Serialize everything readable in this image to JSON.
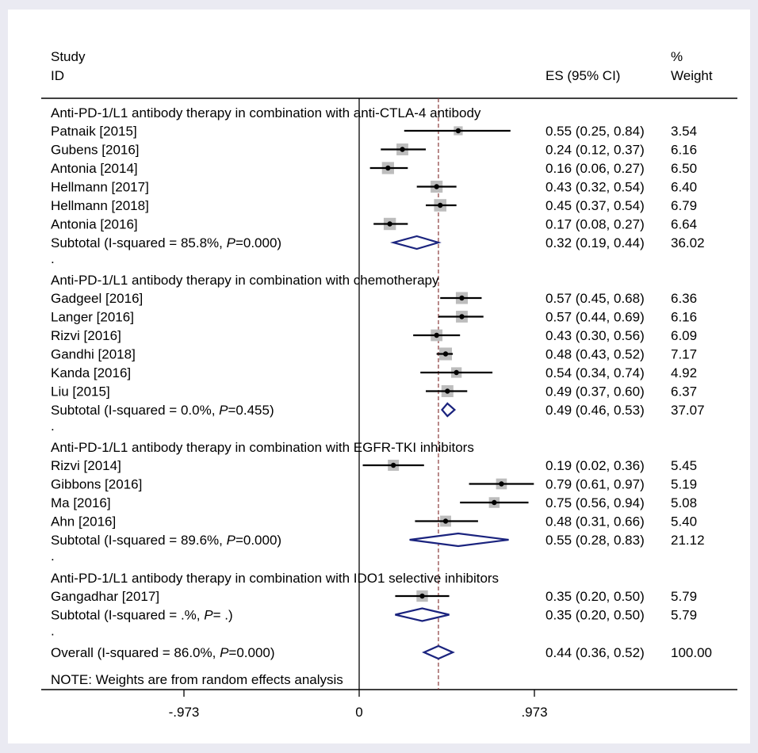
{
  "chart_data": {
    "type": "forest",
    "header": {
      "study_line1": "Study",
      "study_line2": "ID",
      "es": "ES (95% CI)",
      "weight_line1": "%",
      "weight_line2": "Weight"
    },
    "reference_lines": {
      "null": 0,
      "overall_es": 0.44
    },
    "x_ticks": [
      {
        "value": -0.973,
        "label": "-.973"
      },
      {
        "value": 0,
        "label": "0"
      },
      {
        "value": 0.973,
        "label": ".973"
      }
    ],
    "groups": [
      {
        "title": "Anti-PD-1/L1 antibody therapy in combination with  anti-CTLA-4 antibody",
        "studies": [
          {
            "name": "Patnaik [2015]",
            "es": 0.55,
            "lo": 0.25,
            "hi": 0.84,
            "ci_text": "0.55 (0.25, 0.84)",
            "weight": "3.54"
          },
          {
            "name": "Gubens [2016]",
            "es": 0.24,
            "lo": 0.12,
            "hi": 0.37,
            "ci_text": "0.24 (0.12, 0.37)",
            "weight": "6.16"
          },
          {
            "name": "Antonia [2014]",
            "es": 0.16,
            "lo": 0.06,
            "hi": 0.27,
            "ci_text": "0.16 (0.06, 0.27)",
            "weight": "6.50"
          },
          {
            "name": "Hellmann [2017]",
            "es": 0.43,
            "lo": 0.32,
            "hi": 0.54,
            "ci_text": "0.43 (0.32, 0.54)",
            "weight": "6.40"
          },
          {
            "name": "Hellmann [2018]",
            "es": 0.45,
            "lo": 0.37,
            "hi": 0.54,
            "ci_text": "0.45 (0.37, 0.54)",
            "weight": "6.79"
          },
          {
            "name": "Antonia [2016]",
            "es": 0.17,
            "lo": 0.08,
            "hi": 0.27,
            "ci_text": "0.17 (0.08, 0.27)",
            "weight": "6.64"
          }
        ],
        "subtotal": {
          "label_start": "Subtotal  (I-squared = 85.8%, ",
          "p_text": "=0.000)",
          "es": 0.32,
          "lo": 0.19,
          "hi": 0.44,
          "ci_text": "0.32 (0.19, 0.44)",
          "weight": "36.02"
        }
      },
      {
        "title": "Anti-PD-1/L1 antibody therapy in combination with  chemotherapy",
        "studies": [
          {
            "name": "Gadgeel [2016]",
            "es": 0.57,
            "lo": 0.45,
            "hi": 0.68,
            "ci_text": "0.57 (0.45, 0.68)",
            "weight": "6.36"
          },
          {
            "name": "Langer  [2016]",
            "es": 0.57,
            "lo": 0.44,
            "hi": 0.69,
            "ci_text": "0.57 (0.44, 0.69)",
            "weight": "6.16"
          },
          {
            "name": "Rizvi [2016]",
            "es": 0.43,
            "lo": 0.3,
            "hi": 0.56,
            "ci_text": "0.43 (0.30, 0.56)",
            "weight": "6.09"
          },
          {
            "name": "Gandhi [2018]",
            "es": 0.48,
            "lo": 0.43,
            "hi": 0.52,
            "ci_text": "0.48 (0.43, 0.52)",
            "weight": "7.17"
          },
          {
            "name": "Kanda [2016]",
            "es": 0.54,
            "lo": 0.34,
            "hi": 0.74,
            "ci_text": "0.54 (0.34, 0.74)",
            "weight": "4.92"
          },
          {
            "name": "Liu  [2015]",
            "es": 0.49,
            "lo": 0.37,
            "hi": 0.6,
            "ci_text": "0.49 (0.37, 0.60)",
            "weight": "6.37"
          }
        ],
        "subtotal": {
          "label_start": "Subtotal  (I-squared = 0.0%, ",
          "p_text": "=0.455)",
          "es": 0.49,
          "lo": 0.46,
          "hi": 0.53,
          "ci_text": "0.49 (0.46, 0.53)",
          "weight": "37.07"
        }
      },
      {
        "title": "Anti-PD-1/L1  antibody therapy in combination with  EGFR-TKI inhibitors",
        "studies": [
          {
            "name": "Rizvi [2014]",
            "es": 0.19,
            "lo": 0.02,
            "hi": 0.36,
            "ci_text": "0.19 (0.02, 0.36)",
            "weight": "5.45"
          },
          {
            "name": "Gibbons  [2016]",
            "es": 0.79,
            "lo": 0.61,
            "hi": 0.97,
            "ci_text": "0.79 (0.61, 0.97)",
            "weight": "5.19"
          },
          {
            "name": "Ma  [2016]",
            "es": 0.75,
            "lo": 0.56,
            "hi": 0.94,
            "ci_text": "0.75 (0.56, 0.94)",
            "weight": "5.08"
          },
          {
            "name": "Ahn [2016]",
            "es": 0.48,
            "lo": 0.31,
            "hi": 0.66,
            "ci_text": "0.48 (0.31, 0.66)",
            "weight": "5.40"
          }
        ],
        "subtotal": {
          "label_start": "Subtotal  (I-squared = 89.6%, ",
          "p_text": "=0.000)",
          "es": 0.55,
          "lo": 0.28,
          "hi": 0.83,
          "ci_text": "0.55 (0.28, 0.83)",
          "weight": "21.12"
        }
      },
      {
        "title": "Anti-PD-1/L1  antibody therapy in combination with IDO1 selective inhibitors",
        "studies": [
          {
            "name": "Gangadhar  [2017]",
            "es": 0.35,
            "lo": 0.2,
            "hi": 0.5,
            "ci_text": "0.35 (0.20, 0.50)",
            "weight": "5.79"
          }
        ],
        "subtotal": {
          "label_start": "Subtotal  (I-squared = .%, ",
          "p_text": "= .)",
          "es": 0.35,
          "lo": 0.2,
          "hi": 0.5,
          "ci_text": "0.35 (0.20, 0.50)",
          "weight": "5.79"
        }
      }
    ],
    "overall": {
      "label_start": "Overall  (I-squared = 86.0%, ",
      "p_text": "=0.000)",
      "es": 0.44,
      "lo": 0.36,
      "hi": 0.52,
      "ci_text": "0.44 (0.36, 0.52)",
      "weight": "100.00"
    },
    "p_symbol": "P",
    "spacer_mark": ".",
    "note": "NOTE: Weights are from random effects analysis",
    "colors": {
      "ci_line": "#000000",
      "point": "#000000",
      "weight_box": "#bdbdbd",
      "diamond": "#1a237e",
      "overall_line": "#8b3a3a",
      "background": "#eaeaf2"
    }
  }
}
